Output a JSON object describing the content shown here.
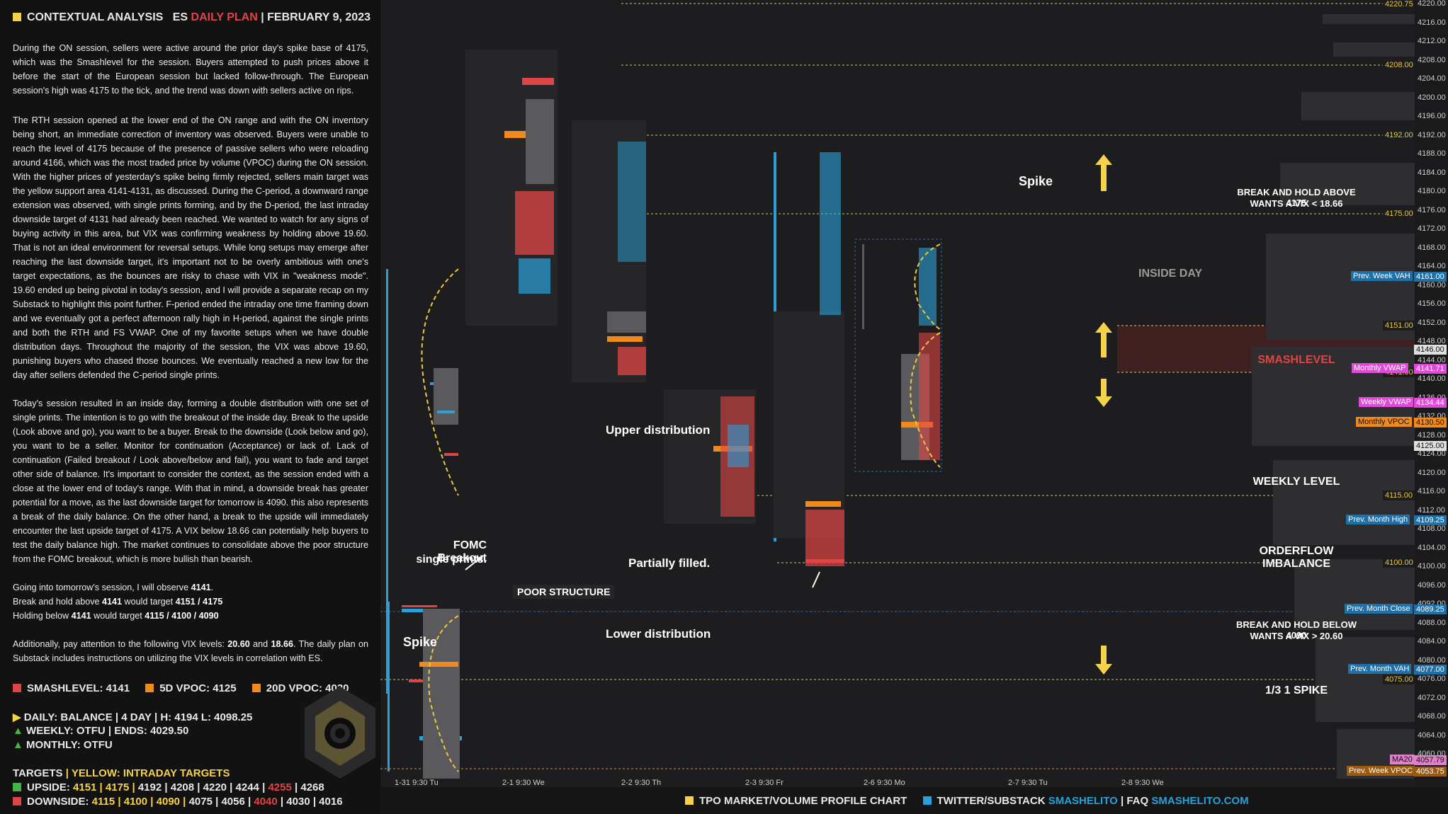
{
  "header": {
    "title": "CONTEXTUAL ANALYSIS",
    "symbol": "ES",
    "plan": "DAILY PLAN",
    "sep": "|",
    "date": "FEBRUARY 9, 2023"
  },
  "paragraphs": {
    "p1": "During the ON session, sellers were active around the prior day's spike base of 4175, which was the Smashlevel for the session. Buyers attempted to push prices above it before the start of the European session but lacked follow-through. The European session's high was 4175 to the tick, and the trend was down with sellers active on rips.",
    "p2": "The RTH session opened at the lower end of the ON range and with the ON inventory being short, an immediate correction of inventory was observed. Buyers were unable to reach the level of 4175 because of the presence of passive sellers who were reloading around 4166, which was the most traded price by volume (VPOC) during the ON session. With the higher prices of yesterday's spike being firmly rejected, sellers main target was the yellow support area 4141-4131, as discussed. During the C-period, a downward range extension was observed, with single prints forming, and by the D-period, the last intraday downside target of 4131 had already been reached. We wanted to watch for any signs of buying activity in this area, but VIX was confirming weakness by holding above 19.60. That is not an ideal environment for reversal setups. While long setups may emerge after reaching the last downside target, it's important not to be overly ambitious with one's target expectations, as the bounces are risky to chase with VIX in \"weakness mode\". 19.60 ended up being pivotal in today's session, and I will provide a separate recap on my Substack to highlight this point further. F-period ended the intraday one time framing down and we eventually got a perfect afternoon rally high in H-period, against the single prints and both the RTH and FS VWAP. One of my favorite setups when we have double distribution days. Throughout the majority of the session, the VIX was above 19.60, punishing buyers who chased those bounces. We eventually reached a new low for the day after sellers defended the C-period single prints.",
    "p3": "Today's session resulted in an inside day, forming a double distribution with one set of single prints. The intention is to go with the breakout of the inside day. Break to the upside (Look above and go), you want to be a buyer. Break to the downside (Look below and go), you want to be a seller. Monitor for continuation (Acceptance) or lack of. Lack of continuation (Failed breakout / Look above/below and fail), you want to fade and target other side of balance. It's important to consider the context, as the session ended with a close at the lower end of today's range. With that in mind, a downside break has greater potential for a move, as the last downside target for tomorrow is 4090. this also represents a break of the daily balance. On the other hand, a break to the upside will immediately encounter the last upside target of 4175. A VIX below 18.66 can potentially help buyers to test the daily balance high. The market continues to consolidate above the poor structure from the FOMC breakout, which is more bullish than bearish.",
    "obs_pre": "Going into tomorrow's session, I will observe ",
    "obs_lvl": "4141",
    "up_pre": "Break and hold above ",
    "up_lvl": "4141",
    "up_mid": " would target ",
    "up_tgt": "4151 / 4175",
    "dn_pre": "Holding below ",
    "dn_lvl": "4141",
    "dn_mid": " would target ",
    "dn_tgt": "4115 / 4100 / 4090",
    "vix_pre": "Additionally, pay attention to the following VIX levels: ",
    "vix_a": "20.60",
    "vix_and": " and ",
    "vix_b": "18.66",
    "vix_post": ". The daily plan on Substack includes instructions on utilizing the VIX levels in correlation with ES."
  },
  "levels": {
    "smash": "SMASHLEVEL: 4141",
    "vpoc5": "5D VPOC: 4125",
    "vpoc20": "20D VPOC: 4030",
    "daily": "DAILY: BALANCE | 4 DAY | H: 4194 L: 4098.25",
    "weekly": "WEEKLY: OTFU | ENDS: 4029.50",
    "monthly": "MONTHLY: OTFU"
  },
  "targets": {
    "title": "TARGETS",
    "sep": "|",
    "yellow_note": "YELLOW: INTRADAY TARGETS",
    "up_label": "UPSIDE:",
    "up_yellow": "4151 | 4175 |",
    "up_white": "4192 | 4208 | 4220 | 4244 |",
    "up_red": "4255",
    "up_tail": "| 4268",
    "dn_label": "DOWNSIDE:",
    "dn_yellow": "4115 | 4100 | 4090 |",
    "dn_white": "4075 | 4056 |",
    "dn_red": "4040",
    "dn_tail": "| 4030 | 4016"
  },
  "chart": {
    "annotations": {
      "spike_left": "Spike",
      "spike_right": "Spike",
      "fomc1": "FOMC Breakout",
      "fomc2": "single prints.",
      "poor": "POOR STRUCTURE",
      "partial": "Partially filled.",
      "upper": "Upper distribution",
      "lower": "Lower distribution",
      "inside": "INSIDE DAY",
      "break_up1": "BREAK AND HOLD ABOVE 4175",
      "break_up2": "WANTS A VIX < 18.66",
      "smashlevel": "SMASHLEVEL",
      "weekly": "WEEKLY LEVEL",
      "orderflow": "ORDERFLOW IMBALANCE",
      "break_dn1": "BREAK AND HOLD BELOW 4090",
      "break_dn2": "WANTS A VIX > 20.60",
      "spike13": "1/3 1 SPIKE"
    },
    "dashed_levels": {
      "l4220": "4220.75",
      "l4208": "4208.00",
      "l4192": "4192.00",
      "l4175": "4175.00",
      "l4151": "4151.00",
      "l4141": "4141.00",
      "l4115": "4115.00",
      "l4100": "4100.00",
      "l4075": "4075.00"
    },
    "tags": {
      "pwvah": "Prev. Week VAH",
      "pwvah_v": "4161.00",
      "cur": "4146.00",
      "mvwap": "Monthly VWAP",
      "mvwap_v": "4141.71",
      "wvwap": "Weekly VWAP",
      "wvwap_v": "4134.44",
      "mvpoc": "Monthly VPOC",
      "mvpoc_v": "4130.50",
      "last": "4125.00",
      "pmhigh": "Prev. Month High",
      "pmhigh_v": "4109.25",
      "pmclose": "Prev. Month Close",
      "pmclose_v": "4089.25",
      "pmvah": "Prev. Month VAH",
      "pmvah_v": "4077.00",
      "ma20": "MA20",
      "ma20_v": "4057.79",
      "pwvpoc": "Prev. Week VPOC",
      "pwvpoc_v": "4053.75"
    },
    "day_labels": [
      "1-31  9:30 Tu",
      "2-1  9:30 We",
      "2-2  9:30 Th",
      "2-3  9:30 Fr",
      "2-6  9:30 Mo",
      "2-7  9:30 Tu",
      "2-8  9:30 We"
    ],
    "price_axis": [
      "4220.00",
      "4216.00",
      "4212.00",
      "4208.00",
      "4204.00",
      "4200.00",
      "4196.00",
      "4192.00",
      "4188.00",
      "4184.00",
      "4180.00",
      "4176.00",
      "4172.00",
      "4168.00",
      "4164.00",
      "4160.00",
      "4156.00",
      "4152.00",
      "4148.00",
      "4144.00",
      "4140.00",
      "4136.00",
      "4132.00",
      "4128.00",
      "4124.00",
      "4120.00",
      "4116.00",
      "4112.00",
      "4108.00",
      "4104.00",
      "4100.00",
      "4096.00",
      "4092.00",
      "4088.00",
      "4084.00",
      "4080.00",
      "4076.00",
      "4072.00",
      "4068.00",
      "4064.00",
      "4060.00",
      "4056.00"
    ]
  },
  "footer": {
    "tpo": "TPO MARKET/VOLUME PROFILE CHART",
    "tw": "TWITTER/SUBSTACK",
    "tw_handle": "SMASHELITO",
    "sep": "|",
    "faq": "FAQ",
    "site": "SMASHELITO.COM"
  },
  "colors": {
    "yellow": "#f6d24a",
    "red": "#e04545",
    "orange": "#f08a1c",
    "green": "#45b54a",
    "blue": "#2ba0d8",
    "magenta": "#e04ad8",
    "steel": "#2a6fa8"
  }
}
